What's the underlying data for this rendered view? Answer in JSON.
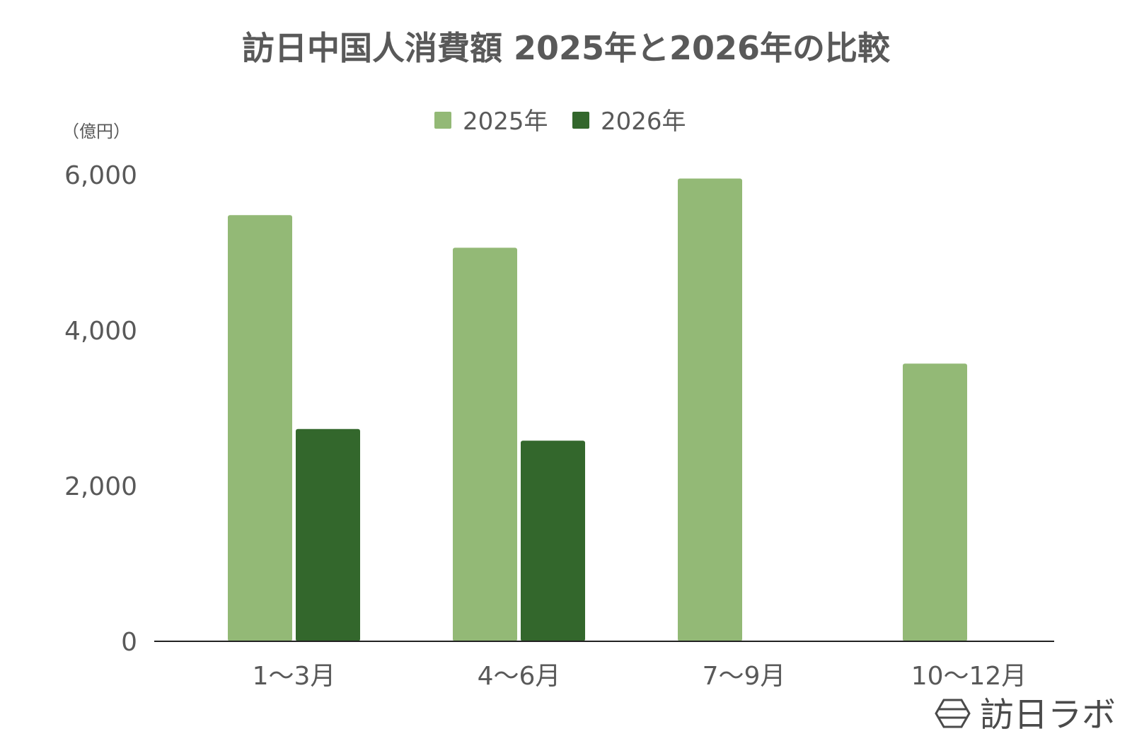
{
  "chart_data": {
    "type": "bar",
    "title": "訪日中国人消費額 2025年と2026年の比較",
    "unit_label": "（億円）",
    "categories": [
      "1〜3月",
      "4〜6月",
      "7〜9月",
      "10〜12月"
    ],
    "series": [
      {
        "name": "2025年",
        "color": "#93b976",
        "values": [
          5480,
          5060,
          5950,
          3570
        ]
      },
      {
        "name": "2026年",
        "color": "#33672c",
        "values": [
          2730,
          2580,
          null,
          null
        ]
      }
    ],
    "ylim": [
      0,
      6000
    ],
    "yticks": [
      0,
      2000,
      4000,
      6000
    ],
    "ytick_labels": [
      "0",
      "2,000",
      "4,000",
      "6,000"
    ],
    "grid": false,
    "legend_position": "top"
  },
  "brand": {
    "name": "訪日ラボ",
    "icon": "hexagon-logo-icon"
  }
}
